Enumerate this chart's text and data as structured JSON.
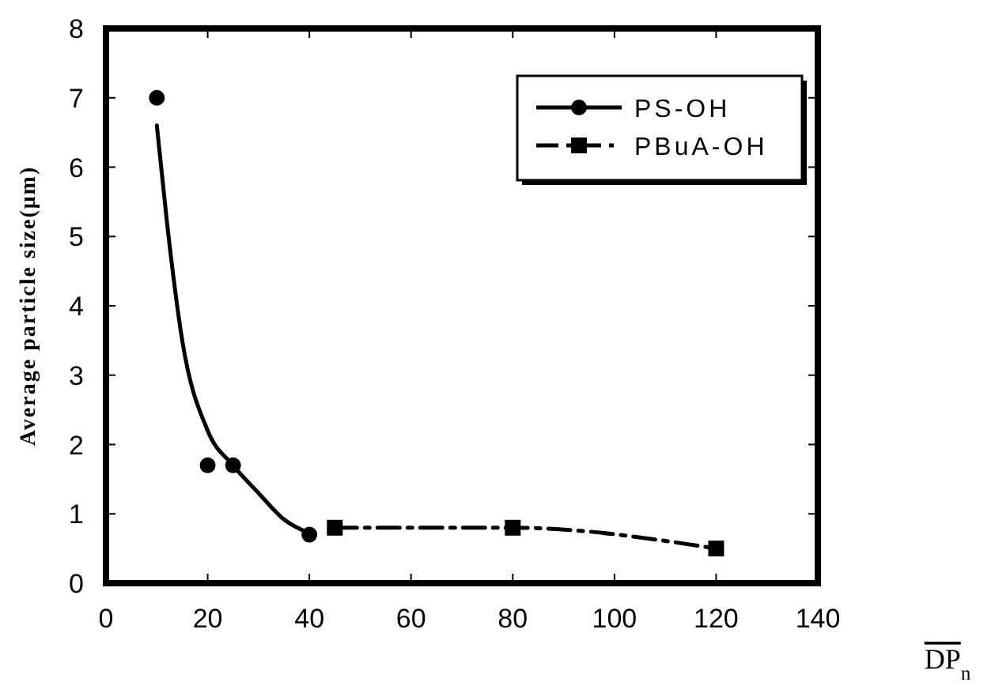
{
  "chart_data": {
    "type": "line",
    "xlabel": "DP$_{n}$",
    "ylabel": "Average particle size(μm)",
    "xlim": [
      0,
      140
    ],
    "xticks": [
      0,
      20,
      40,
      60,
      80,
      100,
      120,
      140
    ],
    "ylim": [
      0,
      8
    ],
    "yticks": [
      0,
      1,
      2,
      3,
      4,
      5,
      6,
      7,
      8
    ],
    "grid": false,
    "legend": "top right",
    "series": [
      {
        "name": "PS-OH",
        "type": "scatter",
        "color": "#000000",
        "marker": "circle",
        "x": [
          10,
          20,
          25,
          40
        ],
        "values": [
          7,
          1.7,
          1.7,
          0.7
        ]
      },
      {
        "type": "line",
        "color": "#000000",
        "marker": "none",
        "line_style": "solid",
        "x": [
          10,
          12,
          15,
          20,
          25,
          30,
          35,
          40
        ],
        "values": [
          6.6,
          5.2,
          3.5,
          2.2,
          1.7,
          1.3,
          0.92,
          0.72
        ]
      },
      {
        "name": "PBuA-OH",
        "color": "#000000",
        "marker": "square",
        "line_style": "dashed",
        "x": [
          45,
          80,
          120
        ],
        "values": [
          0.8,
          0.8,
          0.5
        ]
      }
    ]
  }
}
